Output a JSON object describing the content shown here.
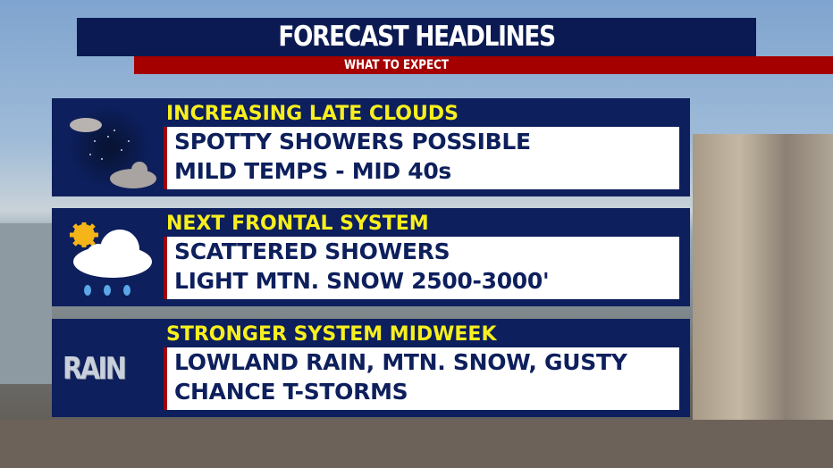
{
  "header": {
    "title": "FORECAST HEADLINES",
    "subtitle": "WHAT TO EXPECT"
  },
  "colors": {
    "navy": "#0d1f5c",
    "red": "#a50000",
    "yellow": "#f7ef1e"
  },
  "panels": [
    {
      "icon": "night-clouds-icon",
      "heading": "INCREASING LATE CLOUDS",
      "lines": [
        "SPOTTY SHOWERS POSSIBLE",
        "MILD TEMPS - MID 40s"
      ]
    },
    {
      "icon": "sun-cloud-rain-icon",
      "heading": "NEXT FRONTAL SYSTEM",
      "lines": [
        "SCATTERED SHOWERS",
        "LIGHT MTN. SNOW 2500-3000'"
      ]
    },
    {
      "icon": "rain-icon",
      "icon_text": "RAIN",
      "heading": "STRONGER SYSTEM MIDWEEK",
      "lines": [
        "LOWLAND RAIN, MTN. SNOW, GUSTY",
        "CHANCE T-STORMS"
      ]
    }
  ]
}
